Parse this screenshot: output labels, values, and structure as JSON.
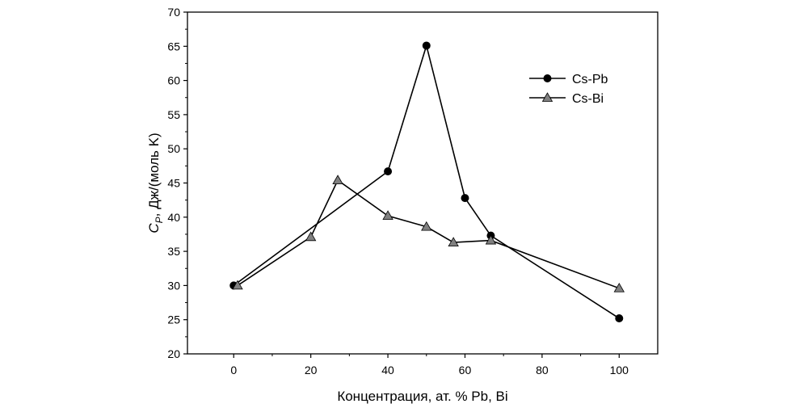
{
  "chart_data": {
    "type": "line",
    "xlabel": "Концентрация, ат. % Pb, Bi",
    "ylabel": {
      "main": "C",
      "sub": "P",
      "rest": ", Дж/(моль K)"
    },
    "xlim": [
      -12,
      110
    ],
    "ylim": [
      20,
      70
    ],
    "xticks": [
      0,
      20,
      40,
      60,
      80,
      100
    ],
    "yticks": [
      20,
      25,
      30,
      35,
      40,
      45,
      50,
      55,
      60,
      65,
      70
    ],
    "grid": false,
    "legend_position": "top-right",
    "series": [
      {
        "name": "Cs-Pb",
        "marker": "circle",
        "color": "#000000",
        "x": [
          0,
          40,
          50,
          60,
          66.7,
          100
        ],
        "y": [
          30.0,
          46.7,
          65.1,
          42.8,
          37.3,
          25.2
        ]
      },
      {
        "name": "Cs-Bi",
        "marker": "triangle",
        "color": "#000000",
        "x": [
          1,
          20,
          27,
          40,
          50,
          57,
          66.7,
          100
        ],
        "y": [
          30.0,
          37.1,
          45.4,
          40.2,
          38.6,
          36.3,
          36.6,
          29.6
        ]
      }
    ]
  }
}
